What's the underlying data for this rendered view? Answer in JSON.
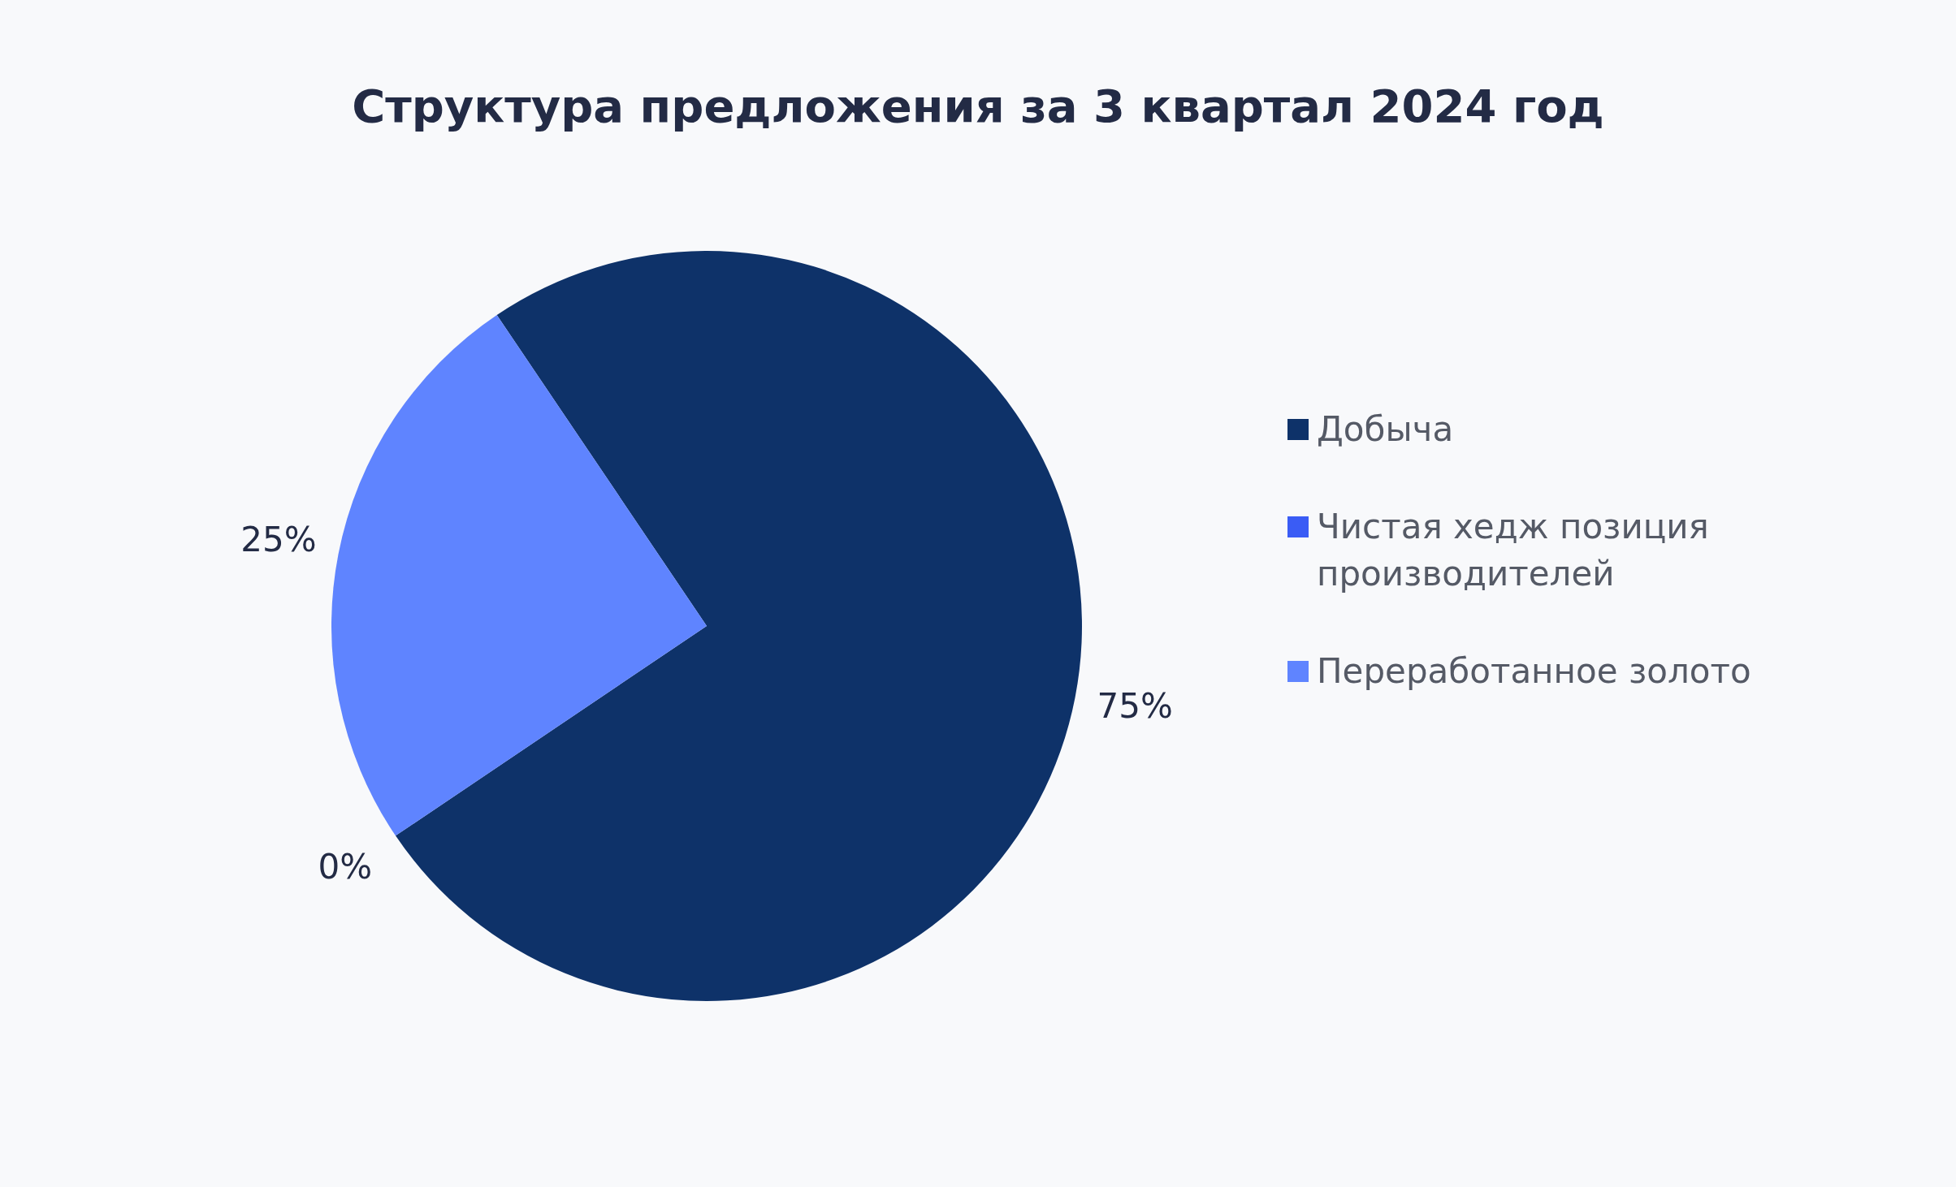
{
  "chart_data": {
    "type": "pie",
    "title": "Структура предложения за 3 квартал 2024 год",
    "categories": [
      "Добыча",
      "Чистая хедж позиция производителей",
      "Переработанное золото"
    ],
    "values": [
      75,
      0,
      25
    ],
    "colors": [
      "#0e3269",
      "#3a5cf5",
      "#5f84ff"
    ],
    "value_labels": [
      "75%",
      "0%",
      "25%"
    ],
    "legend": "right"
  }
}
